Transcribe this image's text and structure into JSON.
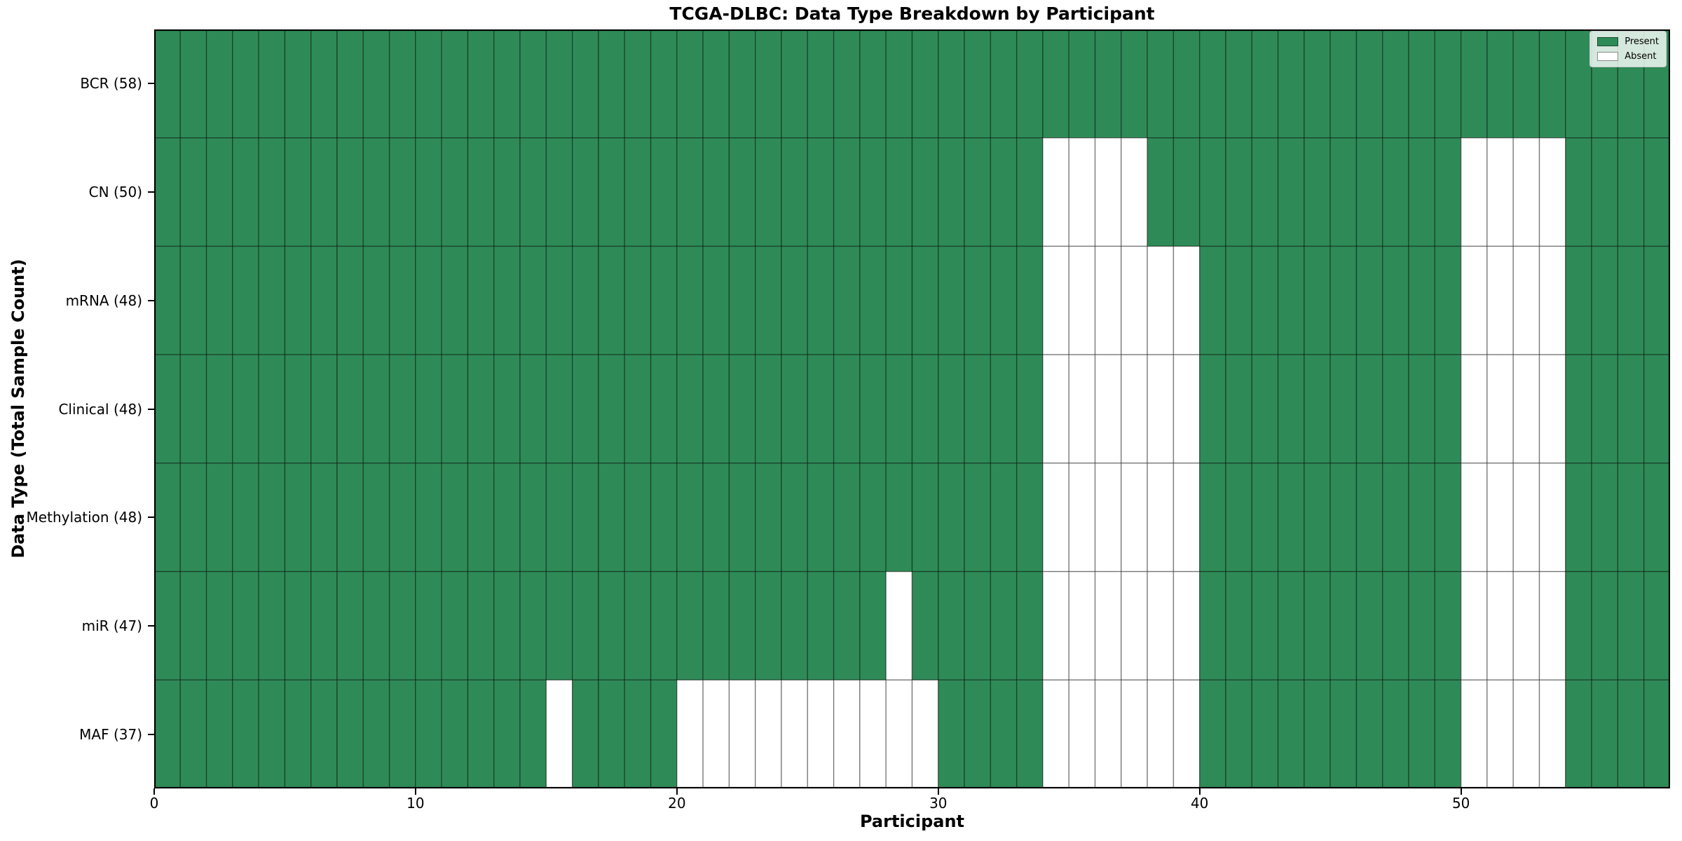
{
  "chart_data": {
    "type": "heatmap",
    "title": "TCGA-DLBC: Data Type Breakdown by Participant",
    "xlabel": "Participant",
    "ylabel": "Data Type (Total Sample Count)",
    "x_ticks": [
      {
        "value": 0,
        "label": "0"
      },
      {
        "value": 10,
        "label": "10"
      },
      {
        "value": 20,
        "label": "20"
      },
      {
        "value": 30,
        "label": "30"
      },
      {
        "value": 40,
        "label": "40"
      },
      {
        "value": 50,
        "label": "50"
      }
    ],
    "n_participants": 58,
    "x_range": [
      0,
      58
    ],
    "grid": true,
    "legend_position": "upper right",
    "rows": [
      {
        "name": "BCR",
        "label": "BCR (58)",
        "present_count": 58,
        "absent_participants": []
      },
      {
        "name": "CN",
        "label": "CN (50)",
        "present_count": 50,
        "absent_participants": [
          34,
          35,
          36,
          37,
          50,
          51,
          52,
          53
        ]
      },
      {
        "name": "mRNA",
        "label": "mRNA (48)",
        "present_count": 48,
        "absent_participants": [
          34,
          35,
          36,
          37,
          38,
          39,
          50,
          51,
          52,
          53
        ]
      },
      {
        "name": "Clinical",
        "label": "Clinical (48)",
        "present_count": 48,
        "absent_participants": [
          34,
          35,
          36,
          37,
          38,
          39,
          50,
          51,
          52,
          53
        ]
      },
      {
        "name": "Methylation",
        "label": "Methylation (48)",
        "present_count": 48,
        "absent_participants": [
          34,
          35,
          36,
          37,
          38,
          39,
          50,
          51,
          52,
          53
        ]
      },
      {
        "name": "miR",
        "label": "miR (47)",
        "present_count": 47,
        "absent_participants": [
          28,
          34,
          35,
          36,
          37,
          38,
          39,
          50,
          51,
          52,
          53
        ]
      },
      {
        "name": "MAF",
        "label": "MAF (37)",
        "present_count": 37,
        "absent_participants": [
          15,
          20,
          21,
          22,
          23,
          24,
          25,
          26,
          27,
          28,
          29,
          34,
          35,
          36,
          37,
          38,
          39,
          50,
          51,
          52,
          53
        ]
      }
    ],
    "legend": [
      {
        "label": "Present",
        "color": "#2e8b57"
      },
      {
        "label": "Absent",
        "color": "#ffffff"
      }
    ],
    "colors": {
      "present": "#2e8b57",
      "absent": "#ffffff",
      "cell_edge": "rgba(0,0,0,0.4)",
      "plot_border": "#000000"
    }
  }
}
